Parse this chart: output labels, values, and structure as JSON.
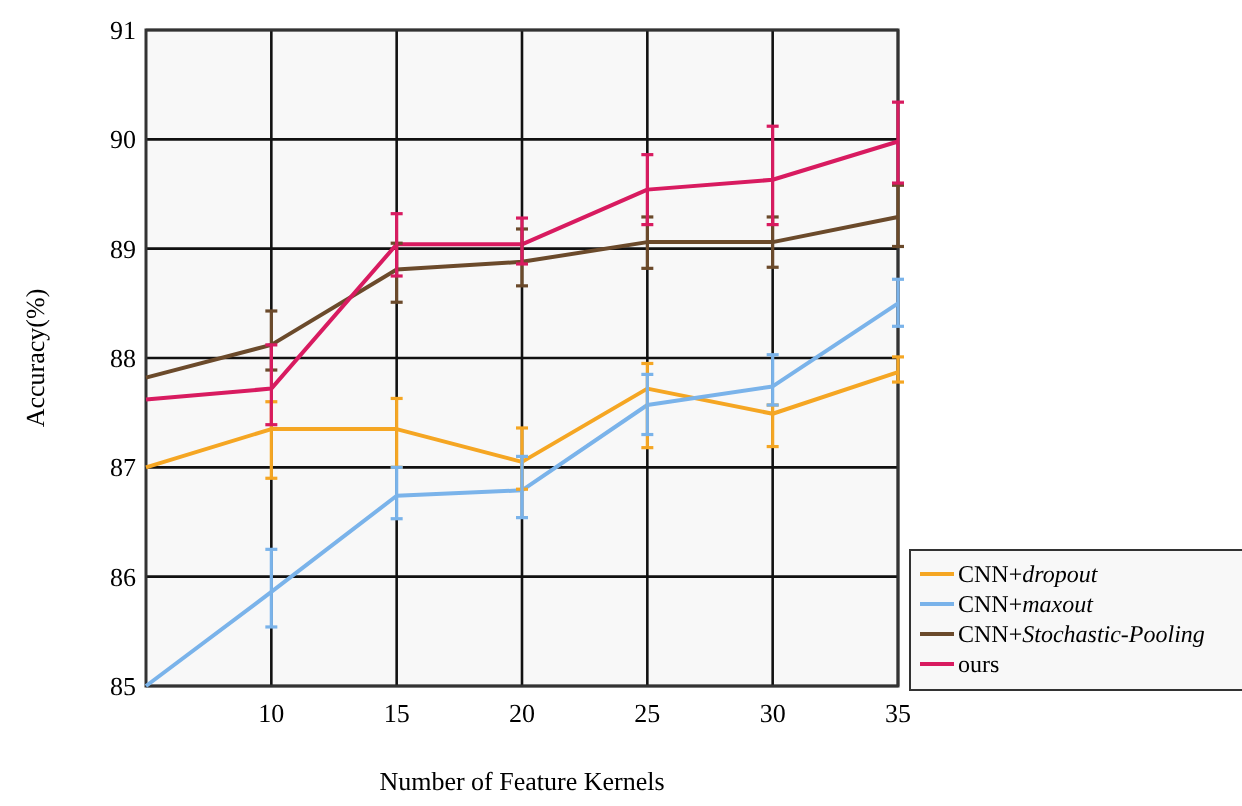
{
  "chart_data": {
    "type": "line",
    "xlabel": "Number of Feature Kernels",
    "ylabel": "Accuracy(%)",
    "x": [
      5,
      10,
      15,
      20,
      25,
      30,
      35
    ],
    "xlim": [
      5,
      35
    ],
    "xticks": [
      10,
      15,
      20,
      25,
      30,
      35
    ],
    "ylim": [
      85,
      91
    ],
    "yticks": [
      85,
      86,
      87,
      88,
      89,
      90,
      91
    ],
    "grid": true,
    "legend": "bottom right",
    "marker": "none",
    "line_style": "solid",
    "series": [
      {
        "name": "CNN+dropout",
        "color": "#f5a623",
        "values": [
          87.0,
          87.35,
          87.35,
          87.05,
          87.72,
          87.49,
          87.87
        ],
        "errors": [
          null,
          [
            86.9,
            87.6
          ],
          [
            87.0,
            87.63
          ],
          [
            86.8,
            87.36
          ],
          [
            87.18,
            87.95
          ],
          [
            87.19,
            87.57
          ],
          [
            87.78,
            88.01
          ]
        ]
      },
      {
        "name": "CNN+maxout",
        "color": "#7ab3ea",
        "values": [
          85.0,
          85.86,
          86.74,
          86.79,
          87.57,
          87.74,
          88.5
        ],
        "errors": [
          null,
          [
            85.54,
            86.25
          ],
          [
            86.53,
            87.0
          ],
          [
            86.54,
            87.1
          ],
          [
            87.3,
            87.85
          ],
          [
            87.57,
            88.03
          ],
          [
            88.29,
            88.72
          ]
        ]
      },
      {
        "name": "CNN+Stochastic-Pooling",
        "color": "#6b4a2b",
        "values": [
          87.82,
          88.12,
          88.81,
          88.88,
          89.06,
          89.06,
          89.29
        ],
        "errors": [
          null,
          [
            87.89,
            88.43
          ],
          [
            88.51,
            89.05
          ],
          [
            88.66,
            89.18
          ],
          [
            88.82,
            89.29
          ],
          [
            88.83,
            89.29
          ],
          [
            89.02,
            89.58
          ]
        ]
      },
      {
        "name": "ours",
        "color": "#d81b60",
        "values": [
          87.62,
          87.72,
          89.04,
          89.04,
          89.54,
          89.63,
          89.98
        ],
        "errors": [
          null,
          [
            87.39,
            88.12
          ],
          [
            88.75,
            89.32
          ],
          [
            88.86,
            89.28
          ],
          [
            89.22,
            89.86
          ],
          [
            89.22,
            90.12
          ],
          [
            89.6,
            90.34
          ]
        ]
      }
    ]
  }
}
